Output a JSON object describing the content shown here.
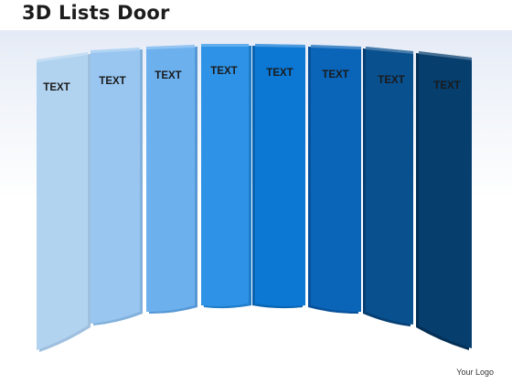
{
  "title": "3D Lists Door",
  "panels": [
    {
      "label": "TEXT",
      "color": "#b2d3f0",
      "side": "#9ec0de"
    },
    {
      "label": "TEXT",
      "color": "#98c6f0",
      "side": "#82b1dc"
    },
    {
      "label": "TEXT",
      "color": "#6cb0ee",
      "side": "#5698d6"
    },
    {
      "label": "TEXT",
      "color": "#2e93e6",
      "side": "#1f7cc8"
    },
    {
      "label": "TEXT",
      "color": "#0c78d4",
      "side": "#0863b0"
    },
    {
      "label": "TEXT",
      "color": "#0a64b8",
      "side": "#08519a"
    },
    {
      "label": "TEXT",
      "color": "#09508f",
      "side": "#063f73"
    },
    {
      "label": "TEXT",
      "color": "#063e6e",
      "side": "#042f55"
    }
  ],
  "logo": "Your Logo"
}
